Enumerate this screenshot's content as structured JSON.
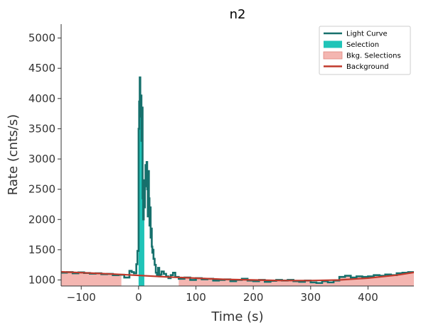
{
  "chart_data": {
    "type": "line",
    "title": "n2",
    "xlabel": "Time (s)",
    "ylabel": "Rate (cnts/s)",
    "xlim": [
      -135,
      480
    ],
    "ylim": [
      900,
      5230
    ],
    "xticks": [
      -100,
      0,
      100,
      200,
      300,
      400
    ],
    "yticks": [
      1000,
      1500,
      2000,
      2500,
      3000,
      3500,
      4000,
      4500,
      5000
    ],
    "grid": false,
    "legend_position": "top-right",
    "legend": [
      {
        "label": "Light Curve",
        "kind": "line",
        "color": "#16706c"
      },
      {
        "label": "Selection",
        "kind": "patch",
        "color": "#20c4b8"
      },
      {
        "label": "Bkg. Selections",
        "kind": "patch",
        "color": "#f4b6b1"
      },
      {
        "label": "Background",
        "kind": "line",
        "color": "#c0392b"
      }
    ],
    "selection": [
      [
        0,
        10
      ]
    ],
    "bkg_selections": [
      [
        -135,
        -30
      ],
      [
        70,
        480
      ]
    ],
    "background": {
      "x": [
        -135,
        -50,
        50,
        150,
        250,
        300,
        350,
        400,
        450,
        480
      ],
      "y": [
        1135,
        1100,
        1050,
        1010,
        990,
        990,
        1000,
        1030,
        1080,
        1125
      ]
    },
    "series": [
      {
        "name": "Light Curve",
        "x": [
          -135,
          -125,
          -115,
          -105,
          -95,
          -85,
          -75,
          -65,
          -55,
          -45,
          -35,
          -25,
          -16,
          -12,
          -8,
          -4,
          -2,
          0,
          1,
          2,
          3,
          4,
          5,
          6,
          7,
          8,
          9,
          10,
          11,
          12,
          13,
          14,
          15,
          16,
          17,
          18,
          19,
          20,
          21,
          22,
          23,
          24,
          25,
          26,
          28,
          30,
          32,
          34,
          36,
          38,
          40,
          44,
          48,
          52,
          56,
          60,
          64,
          70,
          80,
          90,
          100,
          110,
          120,
          130,
          140,
          150,
          160,
          170,
          180,
          190,
          200,
          210,
          220,
          230,
          240,
          250,
          260,
          270,
          280,
          290,
          300,
          310,
          320,
          330,
          340,
          350,
          360,
          370,
          380,
          390,
          400,
          410,
          420,
          430,
          440,
          450,
          460,
          470,
          480
        ],
        "y": [
          1120,
          1130,
          1110,
          1125,
          1115,
          1105,
          1110,
          1095,
          1100,
          1080,
          1085,
          1040,
          1150,
          1130,
          1110,
          1260,
          1480,
          3500,
          3950,
          4350,
          3700,
          4050,
          3300,
          3850,
          2350,
          2000,
          2650,
          2200,
          2550,
          2900,
          2700,
          2950,
          2500,
          2050,
          2800,
          2350,
          1900,
          2200,
          1700,
          1850,
          1550,
          1450,
          1500,
          1350,
          1250,
          1120,
          1080,
          1200,
          1060,
          1090,
          1140,
          1100,
          1060,
          1030,
          1080,
          1120,
          1050,
          1020,
          1040,
          1000,
          1030,
          1010,
          1020,
          990,
          1000,
          1010,
          980,
          1000,
          1020,
          990,
          980,
          1000,
          970,
          985,
          1000,
          990,
          1000,
          980,
          970,
          990,
          960,
          950,
          980,
          960,
          990,
          1050,
          1070,
          1040,
          1060,
          1050,
          1060,
          1080,
          1070,
          1090,
          1080,
          1110,
          1120,
          1130,
          1140
        ]
      }
    ]
  }
}
